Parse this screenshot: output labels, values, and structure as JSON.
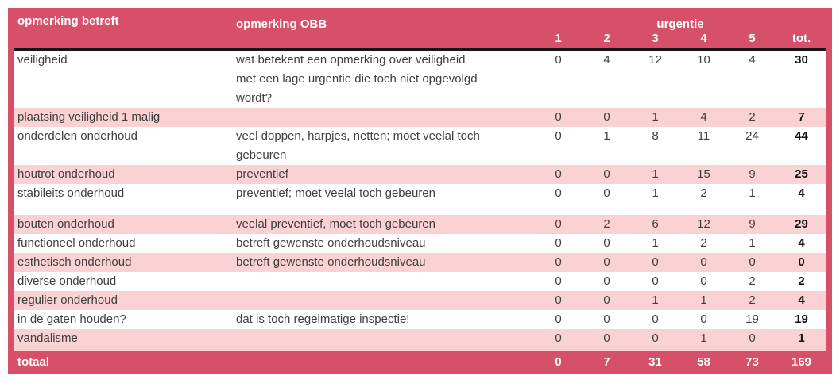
{
  "colors": {
    "accent": "#d6506a",
    "row_pink": "#fad2d3",
    "header_underline": "#161616",
    "body_text": "#3f3f3f"
  },
  "table": {
    "header": {
      "col_label": "opmerking betreft",
      "col_obb": "opmerking OBB",
      "group_label": "urgentie",
      "urgency_cols": [
        "1",
        "2",
        "3",
        "4",
        "5"
      ],
      "total_col": "tot."
    },
    "rows": [
      {
        "label": "veiligheid",
        "obb": "wat betekent een opmerking over veiligheid met een lage urgentie die toch niet opgevolgd wordt?",
        "values": [
          "0",
          "4",
          "12",
          "10",
          "4"
        ],
        "total": "30"
      },
      {
        "label": "plaatsing veiligheid 1 malig",
        "obb": "",
        "values": [
          "0",
          "0",
          "1",
          "4",
          "2"
        ],
        "total": "7"
      },
      {
        "label": "onderdelen onderhoud",
        "obb": "veel doppen, harpjes, netten; moet veelal toch gebeuren",
        "values": [
          "0",
          "1",
          "8",
          "11",
          "24"
        ],
        "total": "44"
      },
      {
        "label": "houtrot onderhoud",
        "obb": "preventief",
        "values": [
          "0",
          "0",
          "1",
          "15",
          "9"
        ],
        "total": "25"
      },
      {
        "label": "stabileits onderhoud",
        "obb": "preventief; moet veelal toch gebeuren",
        "values": [
          "0",
          "0",
          "1",
          "2",
          "1"
        ],
        "total": "4"
      },
      {
        "label": "bouten onderhoud",
        "obb": "veelal preventief, moet toch gebeuren",
        "values": [
          "0",
          "2",
          "6",
          "12",
          "9"
        ],
        "total": "29"
      },
      {
        "label": "functioneel onderhoud",
        "obb": "betreft gewenste onderhoudsniveau",
        "values": [
          "0",
          "0",
          "1",
          "2",
          "1"
        ],
        "total": "4"
      },
      {
        "label": "esthetisch onderhoud",
        "obb": "betreft gewenste onderhoudsniveau",
        "values": [
          "0",
          "0",
          "0",
          "0",
          "0"
        ],
        "total": "0"
      },
      {
        "label": "diverse onderhoud",
        "obb": "",
        "values": [
          "0",
          "0",
          "0",
          "0",
          "2"
        ],
        "total": "2"
      },
      {
        "label": "regulier onderhoud",
        "obb": "",
        "values": [
          "0",
          "0",
          "1",
          "1",
          "2"
        ],
        "total": "4"
      },
      {
        "label": "in de gaten houden?",
        "obb": "dat is toch regelmatige inspectie!",
        "values": [
          "0",
          "0",
          "0",
          "0",
          "19"
        ],
        "total": "19"
      },
      {
        "label": "vandalisme",
        "obb": "",
        "values": [
          "0",
          "0",
          "0",
          "1",
          "0"
        ],
        "total": "1"
      }
    ],
    "footer": {
      "label": "totaal",
      "values": [
        "0",
        "7",
        "31",
        "58",
        "73"
      ],
      "total": "169"
    }
  }
}
